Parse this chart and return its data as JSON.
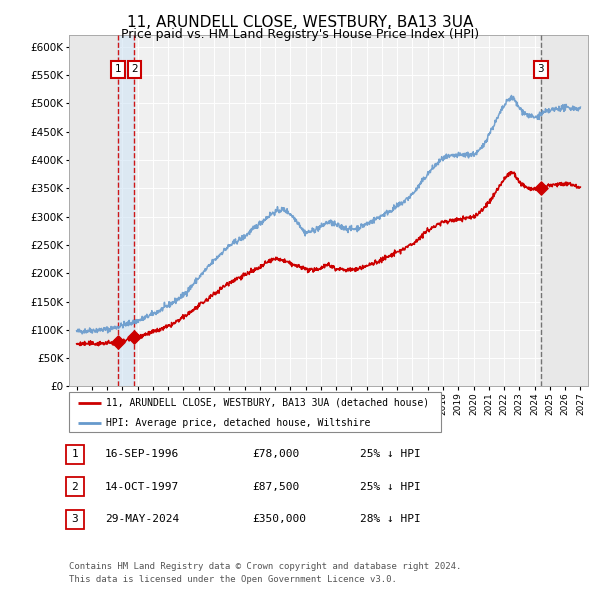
{
  "title": "11, ARUNDELL CLOSE, WESTBURY, BA13 3UA",
  "subtitle": "Price paid vs. HM Land Registry's House Price Index (HPI)",
  "ylim": [
    0,
    620000
  ],
  "yticks": [
    0,
    50000,
    100000,
    150000,
    200000,
    250000,
    300000,
    350000,
    400000,
    450000,
    500000,
    550000,
    600000
  ],
  "xlim_start": 1993.5,
  "xlim_end": 2027.5,
  "background_color": "#ffffff",
  "plot_bg_color": "#f0f0f0",
  "grid_color": "#ffffff",
  "hpi_color": "#6699cc",
  "price_color": "#cc0000",
  "sale1_date": 1996.71,
  "sale1_price": 78000,
  "sale2_date": 1997.79,
  "sale2_price": 87500,
  "sale3_date": 2024.41,
  "sale3_price": 350000,
  "legend_property": "11, ARUNDELL CLOSE, WESTBURY, BA13 3UA (detached house)",
  "legend_hpi": "HPI: Average price, detached house, Wiltshire",
  "table_rows": [
    [
      "1",
      "16-SEP-1996",
      "£78,000",
      "25% ↓ HPI"
    ],
    [
      "2",
      "14-OCT-1997",
      "£87,500",
      "25% ↓ HPI"
    ],
    [
      "3",
      "29-MAY-2024",
      "£350,000",
      "28% ↓ HPI"
    ]
  ],
  "footnote1": "Contains HM Land Registry data © Crown copyright and database right 2024.",
  "footnote2": "This data is licensed under the Open Government Licence v3.0.",
  "vline_color1": "#cc0000",
  "vline_color3": "#666666",
  "hpi_anchors_x": [
    1994.0,
    1995.0,
    1996.0,
    1997.0,
    1998.0,
    1999.0,
    2000.0,
    2001.0,
    2002.0,
    2003.0,
    2004.0,
    2005.0,
    2006.0,
    2007.0,
    2007.5,
    2008.5,
    2009.0,
    2010.0,
    2010.5,
    2011.0,
    2012.0,
    2013.0,
    2014.0,
    2015.0,
    2016.0,
    2017.0,
    2017.5,
    2018.0,
    2019.0,
    2020.0,
    2020.5,
    2021.0,
    2021.5,
    2022.0,
    2022.5,
    2023.0,
    2023.5,
    2024.0,
    2024.5,
    2025.0,
    2026.0,
    2027.0
  ],
  "hpi_anchors_y": [
    97000,
    99000,
    101000,
    108000,
    116000,
    128000,
    143000,
    162000,
    192000,
    222000,
    248000,
    265000,
    288000,
    308000,
    312000,
    290000,
    272000,
    282000,
    290000,
    285000,
    278000,
    287000,
    302000,
    318000,
    340000,
    375000,
    390000,
    402000,
    408000,
    410000,
    420000,
    445000,
    470000,
    495000,
    510000,
    492000,
    480000,
    475000,
    482000,
    487000,
    492000,
    490000
  ],
  "prop_anchors_x": [
    1994.0,
    1995.5,
    1996.71,
    1997.0,
    1997.79,
    1998.5,
    2000.0,
    2002.0,
    2004.0,
    2006.0,
    2007.0,
    2008.5,
    2009.5,
    2010.5,
    2011.0,
    2012.0,
    2013.0,
    2014.0,
    2015.0,
    2016.0,
    2017.0,
    2018.0,
    2019.0,
    2020.0,
    2020.5,
    2021.0,
    2021.5,
    2022.0,
    2022.5,
    2023.0,
    2023.5,
    2024.0,
    2024.41,
    2025.0,
    2026.0,
    2027.0
  ],
  "prop_anchors_y": [
    75000,
    76000,
    78000,
    80000,
    87500,
    92000,
    106000,
    142000,
    183000,
    210000,
    225000,
    212000,
    205000,
    215000,
    208000,
    206000,
    213000,
    224000,
    237000,
    252000,
    275000,
    290000,
    295000,
    300000,
    310000,
    325000,
    345000,
    365000,
    378000,
    362000,
    352000,
    348000,
    350000,
    355000,
    358000,
    352000
  ]
}
